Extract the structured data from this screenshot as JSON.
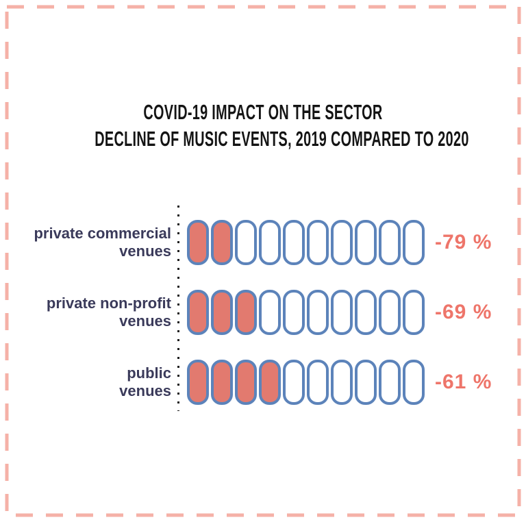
{
  "title": {
    "line1": "COVID-19 IMPACT ON THE SECTOR",
    "line2": "DECLINE OF MUSIC EVENTS, 2019 COMPARED TO 2020"
  },
  "colors": {
    "background": "#ffffff",
    "frame_dash": "#f5b1a7",
    "title_text": "#141414",
    "label_text": "#3a3a5a",
    "pill_fill": "#e27a6f",
    "pill_outline": "#5c83ba",
    "value_text": "#ee756a",
    "dot_axis": "#1e1e1e"
  },
  "chart_data": {
    "type": "bar",
    "style": "pictogram-pill-units",
    "title": "COVID-19 IMPACT ON THE SECTOR — DECLINE OF MUSIC EVENTS, 2019 COMPARED TO 2020",
    "categories": [
      "private commercial venues",
      "private non-profit venues",
      "public venues"
    ],
    "values": [
      -79,
      -69,
      -61
    ],
    "value_labels": [
      "-79 %",
      "-69 %",
      "-61 %"
    ],
    "total_units_per_row": 10,
    "filled_units": [
      2,
      3,
      4
    ],
    "legend": "none",
    "axis": "dotted vertical baseline left of pills",
    "rows": [
      {
        "label_lines": [
          "private commercial",
          "venues"
        ],
        "filled": 2,
        "total": 10,
        "value_label": "-79 %",
        "value": -79
      },
      {
        "label_lines": [
          "private non-profit",
          "venues"
        ],
        "filled": 3,
        "total": 10,
        "value_label": "-69 %",
        "value": -69
      },
      {
        "label_lines": [
          "public",
          "venues"
        ],
        "filled": 4,
        "total": 10,
        "value_label": "-61 %",
        "value": -61
      }
    ]
  }
}
